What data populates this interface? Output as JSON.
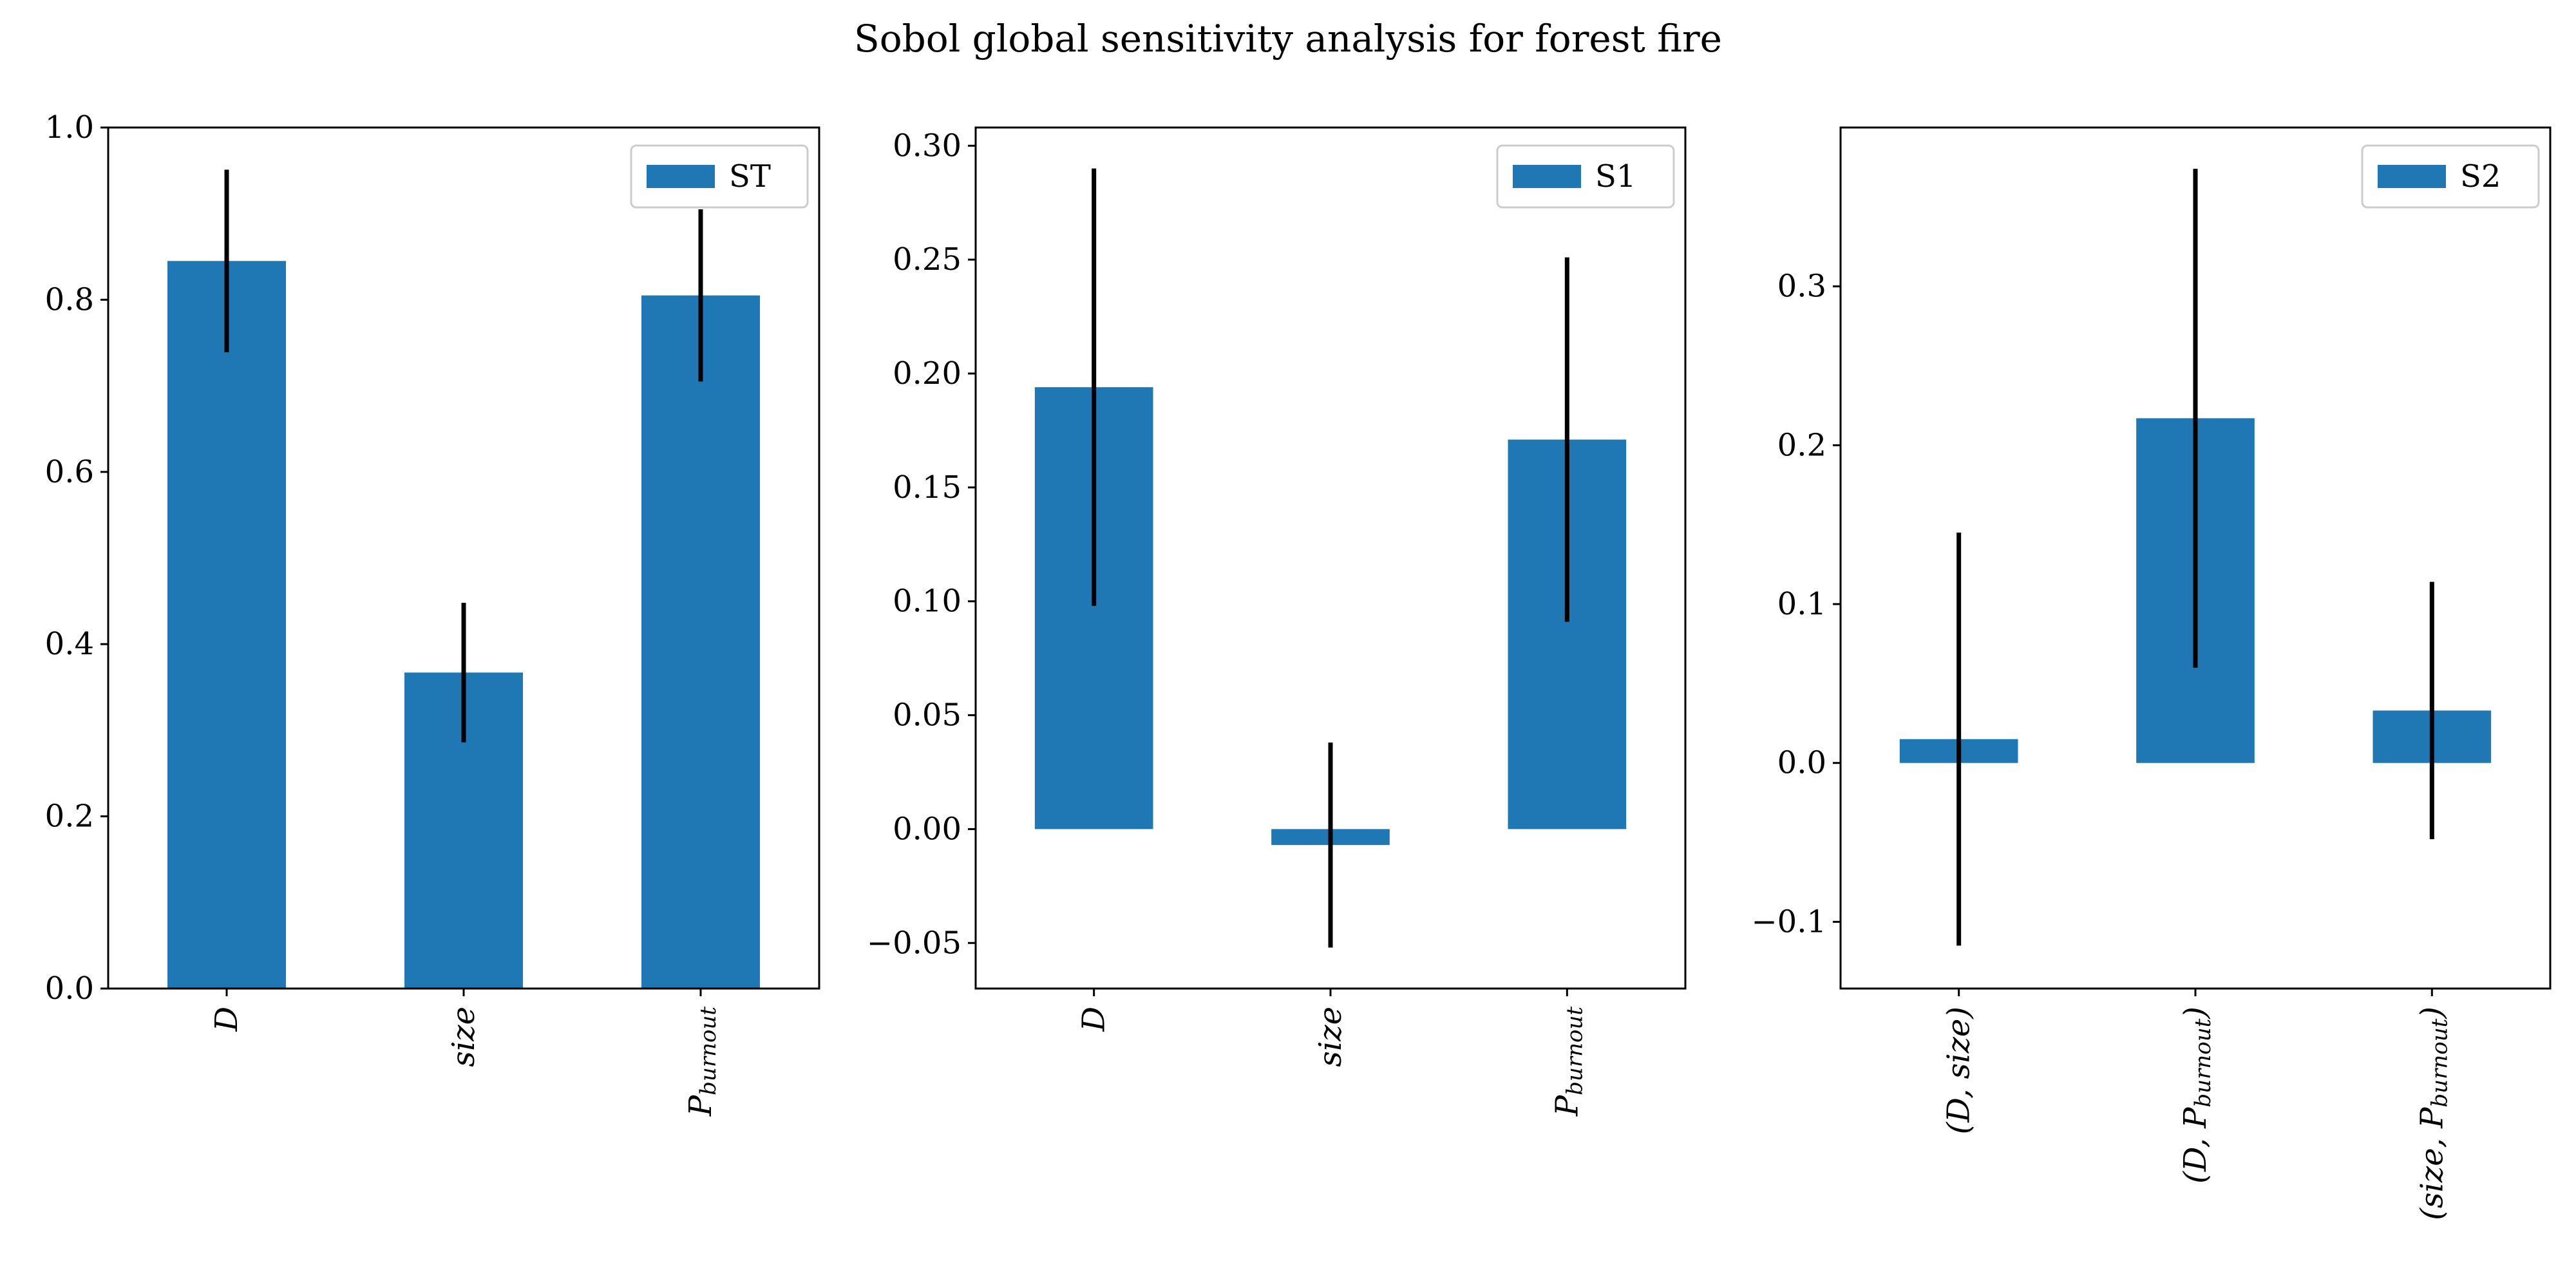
{
  "title": "Sobol global sensitivity analysis for forest fire",
  "chart_data": [
    {
      "type": "bar",
      "legend": "ST",
      "legend_position": "top-right",
      "grid": false,
      "color": "#1f77b4",
      "error_color": "#000000",
      "categories": [
        {
          "label": "D"
        },
        {
          "label": "size"
        },
        {
          "label": "P",
          "sub": "burnout"
        }
      ],
      "values": [
        0.845,
        0.367,
        0.805
      ],
      "errors": [
        0.106,
        0.081,
        0.1
      ],
      "ylim": [
        0.0,
        1.0
      ],
      "yticks": [
        0.0,
        0.2,
        0.4,
        0.6,
        0.8,
        1.0
      ],
      "ytick_labels": [
        "0.0",
        "0.2",
        "0.4",
        "0.6",
        "0.8",
        "1.0"
      ]
    },
    {
      "type": "bar",
      "legend": "S1",
      "legend_position": "top-right",
      "grid": false,
      "color": "#1f77b4",
      "error_color": "#000000",
      "categories": [
        {
          "label": "D"
        },
        {
          "label": "size"
        },
        {
          "label": "P",
          "sub": "burnout"
        }
      ],
      "values": [
        0.194,
        -0.007,
        0.171
      ],
      "errors": [
        0.096,
        0.045,
        0.08
      ],
      "ylim": [
        -0.07,
        0.308
      ],
      "yticks": [
        -0.05,
        0.0,
        0.05,
        0.1,
        0.15,
        0.2,
        0.25,
        0.3
      ],
      "ytick_labels": [
        "−0.05",
        "0.00",
        "0.05",
        "0.10",
        "0.15",
        "0.20",
        "0.25",
        "0.30"
      ]
    },
    {
      "type": "bar",
      "legend": "S2",
      "legend_position": "top-right",
      "grid": false,
      "color": "#1f77b4",
      "error_color": "#000000",
      "categories": [
        {
          "label": "(D, size)"
        },
        {
          "label": "(D, P",
          "sub": "burnout",
          "after": ")"
        },
        {
          "label": "(size, P",
          "sub": "burnout",
          "after": ")"
        }
      ],
      "values": [
        0.015,
        0.217,
        0.033
      ],
      "errors": [
        0.13,
        0.157,
        0.081
      ],
      "ylim": [
        -0.142,
        0.4
      ],
      "yticks": [
        -0.1,
        0.0,
        0.1,
        0.2,
        0.3
      ],
      "ytick_labels": [
        "−0.1",
        "0.0",
        "0.1",
        "0.2",
        "0.3"
      ]
    }
  ]
}
